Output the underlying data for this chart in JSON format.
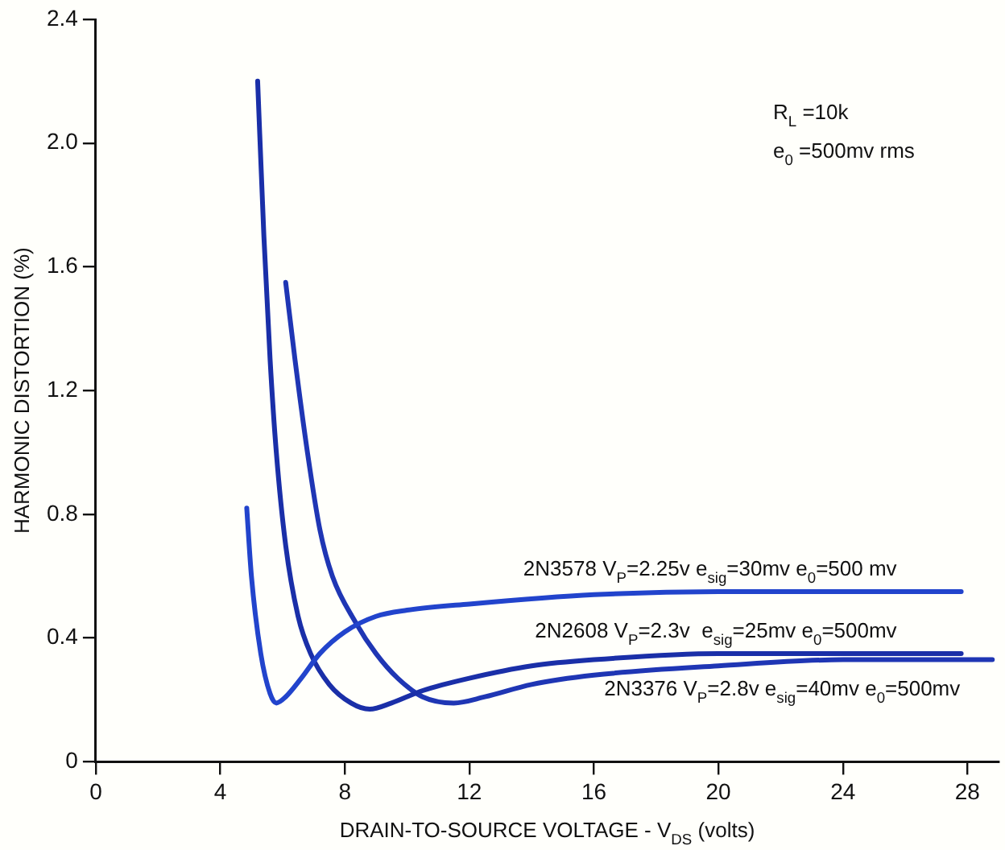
{
  "chart_data": {
    "type": "line",
    "xlabel": "DRAIN-TO-SOURCE VOLTAGE - V$_{DS}$ (volts)",
    "ylabel": "HARMONIC DISTORTION (%)",
    "xlim": [
      0,
      29
    ],
    "xticks": [
      0,
      4,
      8,
      12,
      16,
      20,
      24,
      28
    ],
    "ylim": [
      0,
      2.4
    ],
    "yticks": [
      0,
      0.4,
      0.8,
      1.2,
      1.6,
      {
        "value": 2,
        "label": "2.0"
      },
      2.4
    ],
    "grid": false,
    "legend": false,
    "marker": "none",
    "line_style": "solid",
    "series": [
      {
        "name": "2N3578 V$_{P}$=2.25v e$_{sig}$=30mv e$_{0}$=500 mv",
        "color": "#2244cc",
        "x": [
          4.85,
          5.0,
          5.3,
          5.6,
          5.8,
          6.1,
          6.6,
          7.2,
          8.0,
          9.0,
          10,
          12,
          16,
          20,
          24,
          27.8
        ],
        "values": [
          0.82,
          0.6,
          0.35,
          0.22,
          0.19,
          0.21,
          0.27,
          0.35,
          0.42,
          0.47,
          0.49,
          0.51,
          0.54,
          0.55,
          0.55,
          0.55
        ]
      },
      {
        "name": "2N2608 V$_{P}$=2.3v  e$_{sig}$=25mv e$_{0}$=500mv",
        "color": "#1a2fa8",
        "x": [
          5.2,
          5.4,
          5.6,
          5.8,
          6.1,
          6.5,
          6.9,
          7.5,
          8.2,
          8.8,
          9.5,
          10.5,
          12,
          14,
          16,
          20,
          24,
          27.8
        ],
        "values": [
          2.2,
          1.7,
          1.3,
          1.0,
          0.7,
          0.47,
          0.35,
          0.25,
          0.19,
          0.17,
          0.19,
          0.23,
          0.27,
          0.31,
          0.33,
          0.35,
          0.35,
          0.35
        ]
      },
      {
        "name": "2N3376 V$_{P}$=2.8v e$_{sig}$=40mv e$_{0}$=500mv",
        "color": "#1f36b4",
        "x": [
          6.1,
          6.4,
          6.8,
          7.2,
          7.6,
          8.35,
          9,
          9.7,
          10.5,
          11.5,
          12.5,
          14,
          16,
          20,
          24,
          28.8
        ],
        "values": [
          1.55,
          1.3,
          1.0,
          0.75,
          0.6,
          0.45,
          0.35,
          0.27,
          0.21,
          0.19,
          0.21,
          0.25,
          0.28,
          0.31,
          0.33,
          0.33
        ]
      }
    ],
    "annotations": [
      "R$_{L}$ =10k",
      "e$_{0}$ =500mv rms"
    ]
  }
}
